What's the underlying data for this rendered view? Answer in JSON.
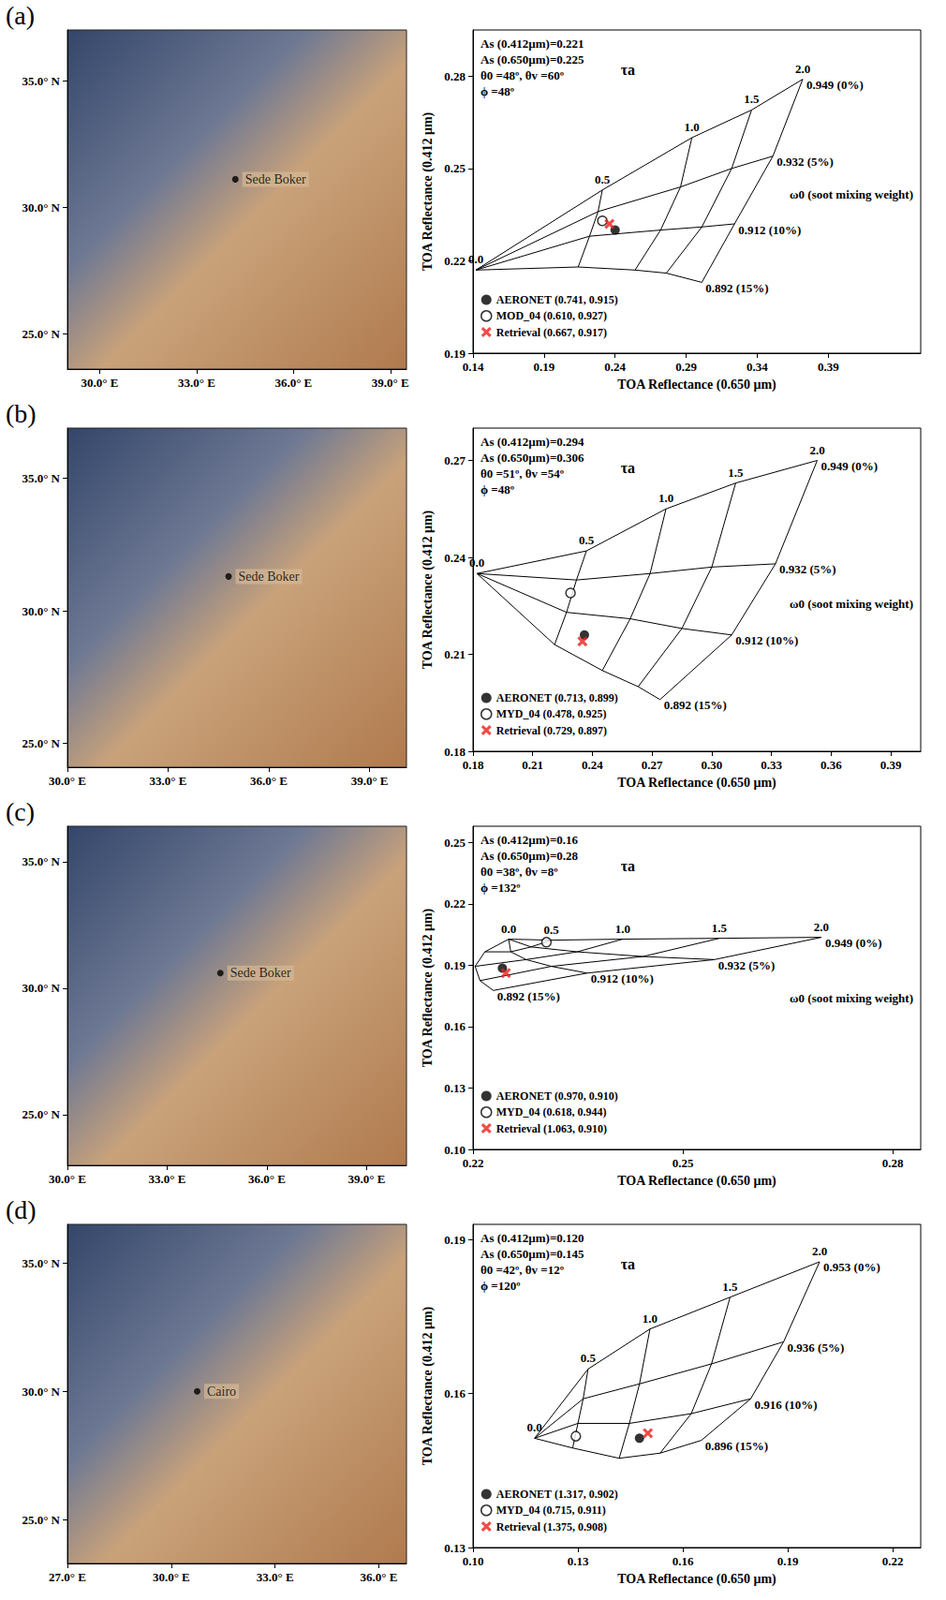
{
  "chart_data": [
    {
      "type": "map",
      "panel_label": "(a)",
      "xlim": [
        29,
        39.5
      ],
      "ylim": [
        23.6,
        37
      ],
      "xticks": [
        {
          "value": 30,
          "label": "30.0° E"
        },
        {
          "value": 33,
          "label": "33.0° E"
        },
        {
          "value": 36,
          "label": "36.0° E"
        },
        {
          "value": 39,
          "label": "39.0° E"
        }
      ],
      "yticks": [
        {
          "value": 25,
          "label": "25.0° N"
        },
        {
          "value": 30,
          "label": "30.0° N"
        },
        {
          "value": 35,
          "label": "35.0° N"
        }
      ],
      "series": [
        {
          "name": "Sede Boker",
          "color": "#000000",
          "marker": "circle",
          "x": [
            34.2
          ],
          "y": [
            31.1
          ]
        }
      ]
    },
    {
      "type": "lut",
      "annotations": [
        "As (0.412µm)=0.221",
        "As (0.650µm)=0.225",
        "θ0 =48º, θv =60º",
        "ϕ =48º"
      ],
      "xlabel": "TOA Reflectance (0.650 µm)",
      "ylabel": "TOA Reflectance (0.412 µm)",
      "xlim": [
        0.14,
        0.455
      ],
      "xticks": [
        0.14,
        0.19,
        0.24,
        0.29,
        0.34,
        0.39
      ],
      "ylim": [
        0.19,
        0.295
      ],
      "yticks": [
        0.19,
        0.22,
        0.25,
        0.28
      ],
      "tau_title": "τa",
      "omega_title": "ω0 (soot mixing weight)",
      "tau": [
        {
          "value": 0,
          "label": "0.0"
        },
        0.5,
        {
          "value": 1,
          "label": "1.0"
        },
        1.5,
        {
          "value": 2,
          "label": "2.0"
        }
      ],
      "omega_curves": [
        {
          "label": "0.949 (0%)",
          "x": [
            0.142,
            0.231,
            0.294,
            0.336,
            0.372
          ],
          "y": [
            0.217,
            0.243,
            0.26,
            0.269,
            0.279
          ]
        },
        {
          "label": "0.932 (5%)",
          "x": [
            0.142,
            0.228,
            0.286,
            0.322,
            0.351
          ],
          "y": [
            0.217,
            0.236,
            0.244,
            0.25,
            0.254
          ]
        },
        {
          "label": "0.912 (10%)",
          "x": [
            0.142,
            0.222,
            0.272,
            0.301,
            0.324
          ],
          "y": [
            0.217,
            0.228,
            0.23,
            0.231,
            0.232
          ]
        },
        {
          "label": "0.892 (15%)",
          "x": [
            0.142,
            0.214,
            0.254,
            0.276,
            0.301
          ],
          "y": [
            0.217,
            0.218,
            0.217,
            0.216,
            0.213
          ]
        }
      ],
      "legend": "lower-left",
      "series": [
        {
          "name": "AERONET (0.741, 0.915)",
          "color": "#000000",
          "marker": "circle",
          "x": [
            0.24
          ],
          "y": [
            0.23
          ]
        },
        {
          "name": "MOD_04 (0.610, 0.927)",
          "color": "#000000",
          "marker": "open_circle",
          "x": [
            0.231
          ],
          "y": [
            0.233
          ]
        },
        {
          "name": "Retrieval (0.667, 0.917)",
          "color": "#e8201c",
          "marker": "x",
          "x": [
            0.236
          ],
          "y": [
            0.232
          ]
        }
      ]
    },
    {
      "type": "map",
      "panel_label": "(b)",
      "xlim": [
        30,
        40.1
      ],
      "ylim": [
        24.1,
        36.9
      ],
      "xticks": [
        {
          "value": 30,
          "label": "30.0° E"
        },
        {
          "value": 33,
          "label": "33.0° E"
        },
        {
          "value": 36,
          "label": "36.0° E"
        },
        {
          "value": 39,
          "label": "39.0° E"
        }
      ],
      "yticks": [
        {
          "value": 25,
          "label": "25.0° N"
        },
        {
          "value": 30,
          "label": "30.0° N"
        },
        {
          "value": 35,
          "label": "35.0° N"
        }
      ],
      "series": [
        {
          "name": "Sede Boker",
          "color": "#000000",
          "marker": "circle",
          "x": [
            34.8
          ],
          "y": [
            31.3
          ]
        }
      ]
    },
    {
      "type": "lut",
      "annotations": [
        "As (0.412µm)=0.294",
        "As (0.650µm)=0.306",
        "θ0 =51º, θv =54º",
        "ϕ =48º"
      ],
      "xlabel": "TOA Reflectance (0.650 µm)",
      "ylabel": "TOA Reflectance (0.412 µm)",
      "xlim": [
        0.18,
        0.405
      ],
      "xticks": [
        0.18,
        0.21,
        0.24,
        0.27,
        {
          "value": 0.3,
          "label": "0.30"
        },
        0.33,
        0.36,
        0.39
      ],
      "ylim": [
        0.18,
        0.28
      ],
      "yticks": [
        0.18,
        0.21,
        0.24,
        0.27
      ],
      "tau_title": "τa",
      "omega_title": "ω0 (soot mixing weight)",
      "tau": [
        {
          "value": 0,
          "label": "0.0"
        },
        0.5,
        {
          "value": 1,
          "label": "1.0"
        },
        1.5,
        {
          "value": 2,
          "label": "2.0"
        }
      ],
      "omega_curves": [
        {
          "label": "0.949 (0%)",
          "x": [
            0.182,
            0.237,
            0.277,
            0.312,
            0.353
          ],
          "y": [
            0.235,
            0.242,
            0.255,
            0.263,
            0.27
          ]
        },
        {
          "label": "0.932 (5%)",
          "x": [
            0.182,
            0.232,
            0.269,
            0.3,
            0.332
          ],
          "y": [
            0.235,
            0.233,
            0.235,
            0.237,
            0.238
          ]
        },
        {
          "label": "0.912 (10%)",
          "x": [
            0.182,
            0.227,
            0.259,
            0.285,
            0.31
          ],
          "y": [
            0.235,
            0.223,
            0.221,
            0.218,
            0.216
          ]
        },
        {
          "label": "0.892 (15%)",
          "x": [
            0.182,
            0.221,
            0.245,
            0.263,
            0.274
          ],
          "y": [
            0.235,
            0.213,
            0.205,
            0.2,
            0.196
          ]
        }
      ],
      "legend": "lower-left",
      "series": [
        {
          "name": "AERONET (0.713, 0.899)",
          "color": "#000000",
          "marker": "circle",
          "x": [
            0.236
          ],
          "y": [
            0.216
          ]
        },
        {
          "name": "MYD_04 (0.478, 0.925)",
          "color": "#000000",
          "marker": "open_circle",
          "x": [
            0.229
          ],
          "y": [
            0.229
          ]
        },
        {
          "name": "Retrieval (0.729, 0.897)",
          "color": "#e8201c",
          "marker": "x",
          "x": [
            0.235
          ],
          "y": [
            0.214
          ]
        }
      ]
    },
    {
      "type": "map",
      "panel_label": "(c)",
      "xlim": [
        30,
        40.2
      ],
      "ylim": [
        23,
        36.4
      ],
      "xticks": [
        {
          "value": 30,
          "label": "30.0° E"
        },
        {
          "value": 33,
          "label": "33.0° E"
        },
        {
          "value": 36,
          "label": "36.0° E"
        },
        {
          "value": 39,
          "label": "39.0° E"
        }
      ],
      "yticks": [
        {
          "value": 25,
          "label": "25.0° N"
        },
        {
          "value": 30,
          "label": "30.0° N"
        },
        {
          "value": 35,
          "label": "35.0° N"
        }
      ],
      "series": [
        {
          "name": "Sede Boker",
          "color": "#000000",
          "marker": "circle",
          "x": [
            34.6
          ],
          "y": [
            30.6
          ]
        }
      ]
    },
    {
      "type": "lut",
      "annotations": [
        "As (0.412µm)=0.16",
        "As (0.650µm)=0.28",
        "θ0 =38º, θv =8º",
        "ϕ =132º"
      ],
      "xlabel": "TOA Reflectance (0.650 µm)",
      "ylabel": "TOA Reflectance (0.412 µm)",
      "xlim": [
        0.22,
        0.284
      ],
      "xticks": [
        0.22,
        0.25,
        0.28
      ],
      "ylim": [
        0.1,
        0.258
      ],
      "yticks": [
        {
          "value": 0.1,
          "label": "0.10"
        },
        0.13,
        0.16,
        0.19,
        0.22,
        0.25
      ],
      "tau_title": "τa",
      "omega_title": "ω0 (soot mixing weight)",
      "tau": [
        {
          "value": 0,
          "label": "0.0"
        },
        0.5,
        {
          "value": 1,
          "label": "1.0"
        },
        1.5,
        {
          "value": 2,
          "label": "2.0"
        }
      ],
      "omega_curves": [
        {
          "label": "0.949 (0%)",
          "x": [
            0.2251,
            0.2312,
            0.2414,
            0.2552,
            0.2698
          ],
          "y": [
            0.2028,
            0.2023,
            0.2028,
            0.2032,
            0.2037
          ]
        },
        {
          "label": "0.932 (5%)",
          "x": [
            0.2251,
            0.2283,
            0.2349,
            0.2443,
            0.2545
          ],
          "y": [
            0.2028,
            0.199,
            0.1966,
            0.1943,
            0.1928
          ]
        },
        {
          "label": "0.912 (10%)",
          "x": [
            0.2251,
            0.2254,
            0.2276,
            0.2312,
            0.2363
          ],
          "y": [
            0.2028,
            0.1966,
            0.1928,
            0.1895,
            0.1862
          ]
        },
        {
          "label": "0.892 (15%)",
          "x": [
            0.2251,
            0.2217,
            0.2203,
            0.221,
            0.2229
          ],
          "y": [
            0.2028,
            0.1966,
            0.1895,
            0.1825,
            0.1777
          ]
        }
      ],
      "legend": "lower-left",
      "series": [
        {
          "name": "AERONET (0.970, 0.910)",
          "color": "#000000",
          "marker": "circle",
          "x": [
            0.2242
          ],
          "y": [
            0.1886
          ]
        },
        {
          "name": "MYD_04 (0.618, 0.944)",
          "color": "#000000",
          "marker": "open_circle",
          "x": [
            0.2305
          ],
          "y": [
            0.2013
          ]
        },
        {
          "name": "Retrieval (1.063, 0.910)",
          "color": "#e8201c",
          "marker": "x",
          "x": [
            0.2247
          ],
          "y": [
            0.1862
          ]
        }
      ]
    },
    {
      "type": "map",
      "panel_label": "(d)",
      "xlim": [
        27,
        36.8
      ],
      "ylim": [
        23.3,
        36.5
      ],
      "xticks": [
        {
          "value": 27,
          "label": "27.0° E"
        },
        {
          "value": 30,
          "label": "30.0° E"
        },
        {
          "value": 33,
          "label": "33.0° E"
        },
        {
          "value": 36,
          "label": "36.0° E"
        }
      ],
      "yticks": [
        {
          "value": 25,
          "label": "25.0° N"
        },
        {
          "value": 30,
          "label": "30.0° N"
        },
        {
          "value": 35,
          "label": "35.0° N"
        }
      ],
      "series": [
        {
          "name": "Cairo",
          "color": "#000000",
          "marker": "circle",
          "x": [
            30.75
          ],
          "y": [
            30.0
          ]
        }
      ]
    },
    {
      "type": "lut",
      "annotations": [
        "As (0.412µm)=0.120",
        "As (0.650µm)=0.145",
        "θ0 =42º, θv =12º",
        "ϕ =120º"
      ],
      "xlabel": "TOA Reflectance (0.650 µm)",
      "ylabel": "TOA Reflectance (0.412 µm)",
      "xlim": [
        0.1,
        0.228
      ],
      "xticks": [
        {
          "value": 0.1,
          "label": "0.10"
        },
        0.13,
        0.16,
        0.19,
        0.22
      ],
      "ylim": [
        0.13,
        0.193
      ],
      "yticks": [
        0.13,
        0.16,
        0.19
      ],
      "tau_title": "τa",
      "tau": [
        {
          "value": 0,
          "label": "0.0"
        },
        0.5,
        {
          "value": 1,
          "label": "1.0"
        },
        1.5,
        {
          "value": 2,
          "label": "2.0"
        }
      ],
      "omega_curves": [
        {
          "label": "0.953 (0%)",
          "x": [
            0.1176,
            0.1329,
            0.1506,
            0.1735,
            0.1991
          ],
          "y": [
            0.1513,
            0.1648,
            0.1726,
            0.1788,
            0.1857
          ]
        },
        {
          "label": "0.936 (5%)",
          "x": [
            0.1176,
            0.1315,
            0.1476,
            0.1682,
            0.1888
          ],
          "y": [
            0.1513,
            0.159,
            0.1619,
            0.1658,
            0.1701
          ]
        },
        {
          "label": "0.916 (10%)",
          "x": [
            0.1176,
            0.13,
            0.1447,
            0.1624,
            0.1794
          ],
          "y": [
            0.1513,
            0.1542,
            0.1542,
            0.1561,
            0.159
          ]
        },
        {
          "label": "0.896 (15%)",
          "x": [
            0.1176,
            0.1285,
            0.1418,
            0.1535,
            0.1653
          ],
          "y": [
            0.1513,
            0.1494,
            0.1474,
            0.1484,
            0.1509
          ]
        }
      ],
      "legend": "lower-left",
      "series": [
        {
          "name": "AERONET (1.317, 0.902)",
          "color": "#000000",
          "marker": "circle",
          "x": [
            0.1476
          ],
          "y": [
            0.1513
          ]
        },
        {
          "name": "MYD_04 (0.715, 0.911)",
          "color": "#000000",
          "marker": "open_circle",
          "x": [
            0.1294
          ],
          "y": [
            0.1517
          ]
        },
        {
          "name": "Retrieval (1.375, 0.908)",
          "color": "#e8201c",
          "marker": "x",
          "x": [
            0.15
          ],
          "y": [
            0.1523
          ]
        }
      ]
    }
  ]
}
